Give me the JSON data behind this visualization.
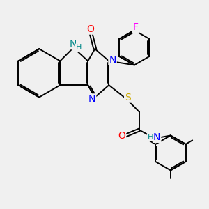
{
  "bg_color": "#f0f0f0",
  "atom_colors": {
    "N": "#0000ff",
    "O": "#ff0000",
    "S": "#ccaa00",
    "F": "#ff00ff",
    "H_label": "#008888",
    "C": "#000000"
  },
  "font_size_atom": 10,
  "font_size_small": 8
}
